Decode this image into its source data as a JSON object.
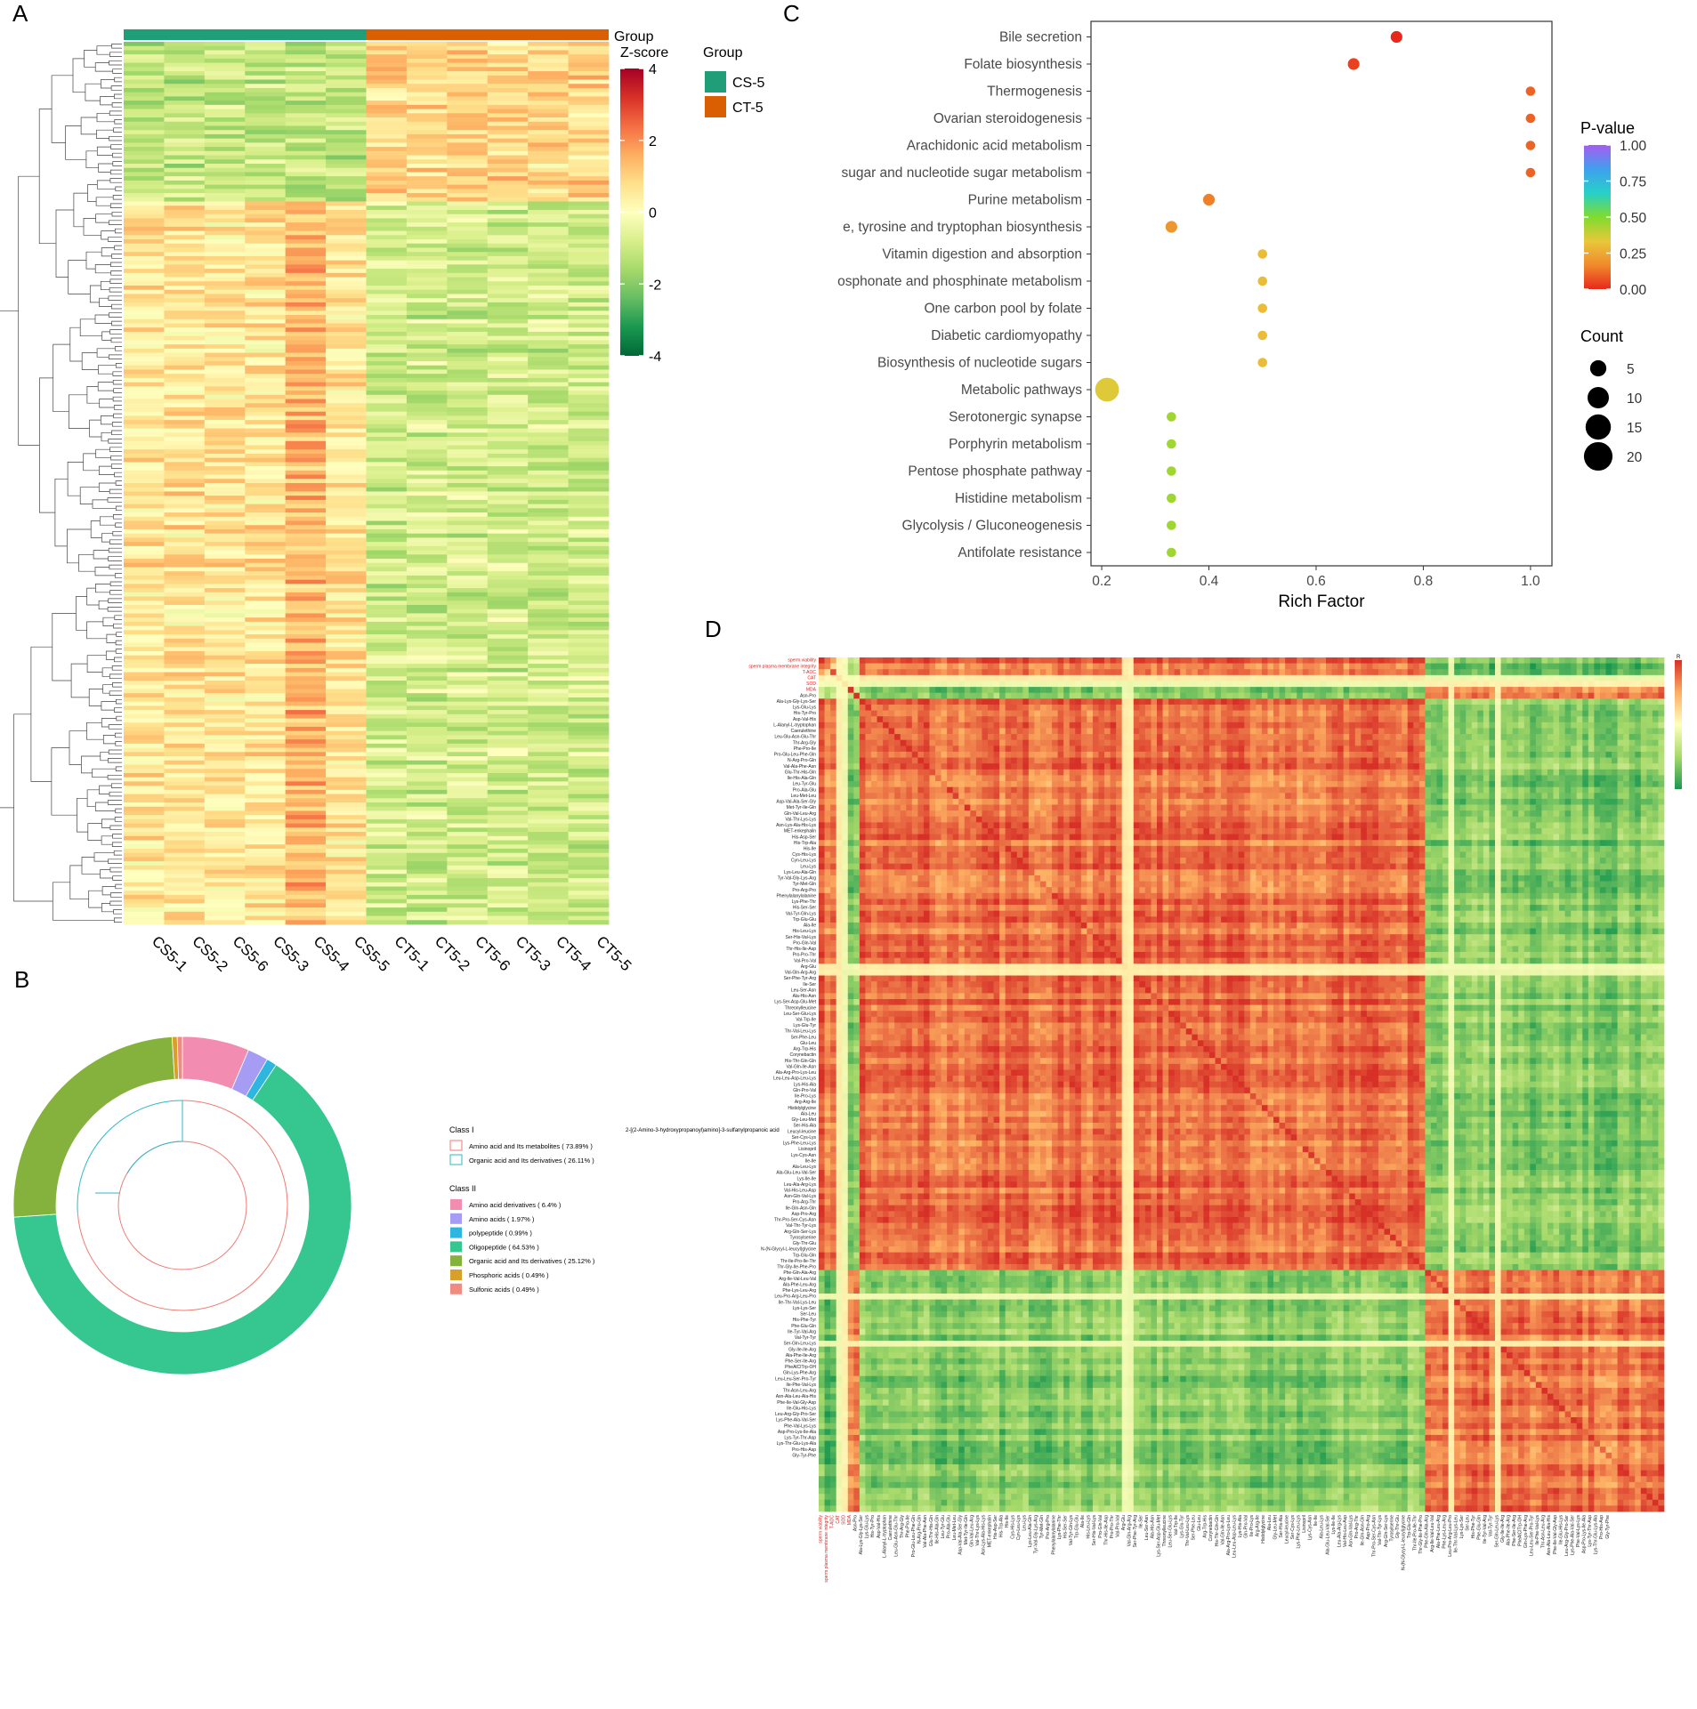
{
  "panels": {
    "a": {
      "letter": "A"
    },
    "b": {
      "letter": "B"
    },
    "c": {
      "letter": "C"
    },
    "d": {
      "letter": "D"
    }
  },
  "chart_data": [
    {
      "panel": "A",
      "type": "heatmap",
      "samples": [
        "CS5-1",
        "CS5-2",
        "CS5-6",
        "CS5-3",
        "CS5-4",
        "CS5-5",
        "CT5-1",
        "CT5-2",
        "CT5-6",
        "CT5-3",
        "CT5-4",
        "CT5-5"
      ],
      "groups": [
        {
          "name": "CS-5",
          "color": "#1f9e78",
          "columns": 6
        },
        {
          "name": "CT-5",
          "color": "#d95f02",
          "columns": 6
        }
      ],
      "group_legend_title": "Group",
      "annotation_label": "Group",
      "colorbar": {
        "title": "Z-score",
        "ticks": [
          4,
          2,
          0,
          -2,
          -4
        ],
        "range": [
          -4,
          4
        ],
        "colors": [
          "#006837",
          "#1a9850",
          "#66bd63",
          "#a6d96a",
          "#d9ef8b",
          "#ffffbf",
          "#fee08b",
          "#fdae61",
          "#f46d43",
          "#d73027",
          "#a50026"
        ]
      },
      "row_blocks": [
        {
          "rows": 38,
          "pattern": "low_CS_high_CT"
        },
        {
          "rows": 172,
          "pattern": "high_CS_low_CT"
        }
      ]
    },
    {
      "panel": "B",
      "type": "pie",
      "class_i_title": "Class I",
      "class_i": [
        {
          "label": "Amino acid and Its metabolites ( 73.89% )",
          "value": 73.89,
          "color": "#f07b72"
        },
        {
          "label": "Organic acid and Its derivatives ( 26.11% )",
          "value": 26.11,
          "color": "#2fb9c6"
        }
      ],
      "class_ii_title": "Class II",
      "class_ii": [
        {
          "label": "Amino acid derivatives ( 6.4% )",
          "value": 6.4,
          "color": "#f28cb1"
        },
        {
          "label": "Amino acids ( 1.97% )",
          "value": 1.97,
          "color": "#a69cf3"
        },
        {
          "label": "polypeptide ( 0.99% )",
          "value": 0.99,
          "color": "#2eb6e0"
        },
        {
          "label": "Oligopeptide ( 64.53% )",
          "value": 64.53,
          "color": "#36c690"
        },
        {
          "label": "Organic acid and Its derivatives ( 25.12% )",
          "value": 25.12,
          "color": "#84b23c"
        },
        {
          "label": "Phosphoric acids ( 0.49% )",
          "value": 0.49,
          "color": "#d89f2a"
        },
        {
          "label": "Sulfonic acids ( 0.49% )",
          "value": 0.49,
          "color": "#f08b84"
        }
      ]
    },
    {
      "panel": "C",
      "type": "scatter",
      "xlabel": "Rich Factor",
      "xlim": [
        0.18,
        1.04
      ],
      "xticks": [
        0.2,
        0.4,
        0.6,
        0.8,
        1.0
      ],
      "xtick_labels": [
        "0.2",
        "0.4",
        "0.6",
        "0.8",
        "1.0"
      ],
      "pathways": [
        {
          "name": "Bile secretion",
          "rich": 0.75,
          "p": 0.0,
          "count": 2
        },
        {
          "name": "Folate biosynthesis",
          "rich": 0.67,
          "p": 0.04,
          "count": 2
        },
        {
          "name": "Thermogenesis",
          "rich": 1.0,
          "p": 0.1,
          "count": 1
        },
        {
          "name": "Ovarian steroidogenesis",
          "rich": 1.0,
          "p": 0.1,
          "count": 1
        },
        {
          "name": "Arachidonic acid metabolism",
          "rich": 1.0,
          "p": 0.1,
          "count": 1
        },
        {
          "name": "sugar and nucleotide sugar metabolism",
          "rich": 1.0,
          "p": 0.1,
          "count": 1
        },
        {
          "name": "Purine metabolism",
          "rich": 0.4,
          "p": 0.15,
          "count": 2
        },
        {
          "name": "e, tyrosine and tryptophan biosynthesis",
          "rich": 0.33,
          "p": 0.2,
          "count": 2
        },
        {
          "name": "Vitamin digestion and absorption",
          "rich": 0.5,
          "p": 0.3,
          "count": 1
        },
        {
          "name": "osphonate and phosphinate metabolism",
          "rich": 0.5,
          "p": 0.3,
          "count": 1
        },
        {
          "name": "One carbon pool by folate",
          "rich": 0.5,
          "p": 0.3,
          "count": 1
        },
        {
          "name": "Diabetic cardiomyopathy",
          "rich": 0.5,
          "p": 0.3,
          "count": 1
        },
        {
          "name": "Biosynthesis of nucleotide sugars",
          "rich": 0.5,
          "p": 0.3,
          "count": 1
        },
        {
          "name": "Metabolic pathways",
          "rich": 0.21,
          "p": 0.35,
          "count": 13
        },
        {
          "name": "Serotonergic synapse",
          "rich": 0.33,
          "p": 0.45,
          "count": 1
        },
        {
          "name": "Porphyrin metabolism",
          "rich": 0.33,
          "p": 0.45,
          "count": 1
        },
        {
          "name": "Pentose phosphate pathway",
          "rich": 0.33,
          "p": 0.45,
          "count": 1
        },
        {
          "name": "Histidine metabolism",
          "rich": 0.33,
          "p": 0.45,
          "count": 1
        },
        {
          "name": "Glycolysis / Gluconeogenesis",
          "rich": 0.33,
          "p": 0.45,
          "count": 1
        },
        {
          "name": "Antifolate resistance",
          "rich": 0.33,
          "p": 0.45,
          "count": 1
        }
      ],
      "pvalue_legend": {
        "title": "P-value",
        "ticks": [
          "1.00",
          "0.75",
          "0.50",
          "0.25",
          "0.00"
        ],
        "colors": [
          "#a65cf0",
          "#3fa0ee",
          "#27d0c8",
          "#7fdc2e",
          "#e8c83a",
          "#f08a2c",
          "#e8281c"
        ]
      },
      "count_legend": {
        "title": "Count",
        "values": [
          5,
          10,
          15,
          20
        ]
      }
    },
    {
      "panel": "D",
      "type": "heatmap",
      "matrix_size": 145,
      "blocks": [
        {
          "name": "traits",
          "size": 7
        },
        {
          "name": "cluster1",
          "size": 97
        },
        {
          "name": "cluster2",
          "size": 41
        }
      ],
      "colorbar_title": "R",
      "colors": [
        "#1a9850",
        "#a6d96a",
        "#ffffbf",
        "#fdae61",
        "#d73027"
      ],
      "red_labels": [
        "sperm viability",
        "sperm plasma membrane integrity",
        "T-AOC",
        "CAT",
        "SOD",
        "MDA"
      ],
      "row_labels": [
        "Asn-Pro",
        "Ala-Lys-Gly-Lys-Ser",
        "Lys-Glu-Lys",
        "His-Tyr-Pro",
        "Asp-Val-His",
        "L-Alanyl-L-tryptophan",
        "Caerulethine",
        "Leu-Glu-Asn-Glu-Thr",
        "Thr-Arg-Gly",
        "Phe-Pro-Ile",
        "Pro-Glu-Leu-Phe-Gln",
        "N-Arg-Pro-Gln",
        "Val-Ala-Phe-Asn",
        "Glu-Thr-His-Gln",
        "Ile-His-Ala-Gln",
        "Leu-Tyr-Glu",
        "Pro-Ala-Glu",
        "Leu-Met-Leu",
        "Asp-Val-Ala-Ser-Gly",
        "Met-Tyr-Ile-Gln",
        "Gln-Val-Leu-Arg",
        "Val-Thr-Lys-Lys",
        "Asn-Lys-Ala-His-Lys",
        "MET-enkephalin",
        "His-Asp-Ser",
        "His-Trp-Ala",
        "His-Ile",
        "Cys-His-Lys",
        "Cyn-Leu-Lys",
        "Leu-Lys",
        "Lys-Leu-Ala-Gln",
        "Tyr-Val-Gly-Lys-Arg",
        "Tyr-Met-Gln",
        "Pro-Arg-Pro",
        "Phenylalanylalanine",
        "Lys-Phe-Thr",
        "His-Ser-Ser",
        "Val-Tyr-Gln-Lys",
        "Trp-Glu-Glu",
        "Ala-Ile",
        "His-Leu-Lys",
        "Ser-His-Val-Lys",
        "Pro-Gln-Val",
        "Thr-His-Ile-Asp",
        "Pro-Pro-Thr",
        "Val-Pro-Val",
        "Arg-Glu",
        "Val-Gln-Arg-Arg",
        "Ser-Phe-Tyr-Arg",
        "Ile-Ser",
        "Leu-Ser-Asn",
        "Ala-His-Asn",
        "Lys-Ser-Asp-Glu-Met",
        "Threonylleucine",
        "Leu-Ser-Glu-Lys",
        "Val-Trp-Ile",
        "Lys-Glu-Tyr",
        "Thr-Val-Leu-Lys",
        "Ser-Phe-Leu",
        "Glu-Leu",
        "Arg-Trp-His",
        "Corynebactin",
        "His-Thr-Gln-Gln",
        "Val-Gln-Ile-Asn",
        "Ala-Arg-Pro-Lys-Leu",
        "Leu-Leu-Asp-Leu-Lys",
        "Lys-His-Ala",
        "Gln-Pro-Val",
        "Ile-Pro-Lys",
        "Arg-Arg-Ile",
        "Histidylglycine",
        "Ala-Leu",
        "Gly-Leu-Met",
        "Ser-His-Ala",
        "Leucyl-leucine",
        "Ser-Cys-Lys",
        "Lys-Phe-Leu-Lys",
        "Lisinopril",
        "Lys-Cys-Asn",
        "Ile-Ile",
        "Ala-Leu-Lys",
        "Ala-Glu-Leu-Val-Ser",
        "Lys-Ile-Ile",
        "Leu-Ala-Arg-Lys",
        "Val-His-Leu-Asp",
        "Asn-Gln-Val-Lys",
        "Pro-Arg-Thr",
        "Ile-Gln-Asn-Gln",
        "Asp-Pro-Arg",
        "Thr-Pro-Ser-Cys-Asn",
        "Val-Thr-Tyr-Lys",
        "Arg-Gln-Ser-Lys",
        "Tyrosylserine",
        "Gly-Thr-Glu",
        "N-(N-Glycyl-L-leucyl)glycine",
        "Trp-Glu-Gln",
        "Thr-Ile-Pro-Ile-Thr",
        "Thr-Gly-Ile-Phe-Pro",
        "Phe-Gln-Ala-Arg",
        "Arg-Ile-Val-Leu-Val",
        "Ala-Phe-Leu-Arg",
        "Phe-Lys-Leu-Arg",
        "Leu-Pro-Arg-Leu-Pro",
        "Ile-Thr-Val-Lys-Leu",
        "Lys-Lys-Ser",
        "Ser-Leu",
        "His-Phe-Tyr",
        "Phe-Glu-Gln",
        "Ile-Tyr-Val-Arg",
        "Val-Tyr-Tyr",
        "Ser-Gln-Leu-Lys",
        "Gly-Ile-Ile-Arg",
        "Ala-Phe-Ile-Arg",
        "Phe-Ser-Ile-Arg",
        "PheAlCITrp-OH",
        "Gln-Lys-Phe-Arg",
        "Leu-Leu-Ser-Pro-Tyr",
        "Ile-Phe-Val-Lys",
        "Thr-Asn-Leu-Arg",
        "Asn-Ala-Leu-Ala-His",
        "Phe-Ile-Val-Gly-Asp",
        "Ile-Glu-His-Lys",
        "Leu-Arg-Gly-Pro-Ser",
        "Lys-Phe-Ala-Val-Ser",
        "Phe-Val-Lys-Lys",
        "Asp-Pro-Lys-Ile-Ala",
        "Lys-Tyr-Thr-Asp",
        "Lys-Thr-Glu-Lys-Ala",
        "Pro-His-Asp",
        "Gly-Tyr-Phe"
      ],
      "long_label": "2-[(2-Amino-3-hydroxypropanoyl)amino]-3-sulfanylpropanoic acid"
    }
  ]
}
